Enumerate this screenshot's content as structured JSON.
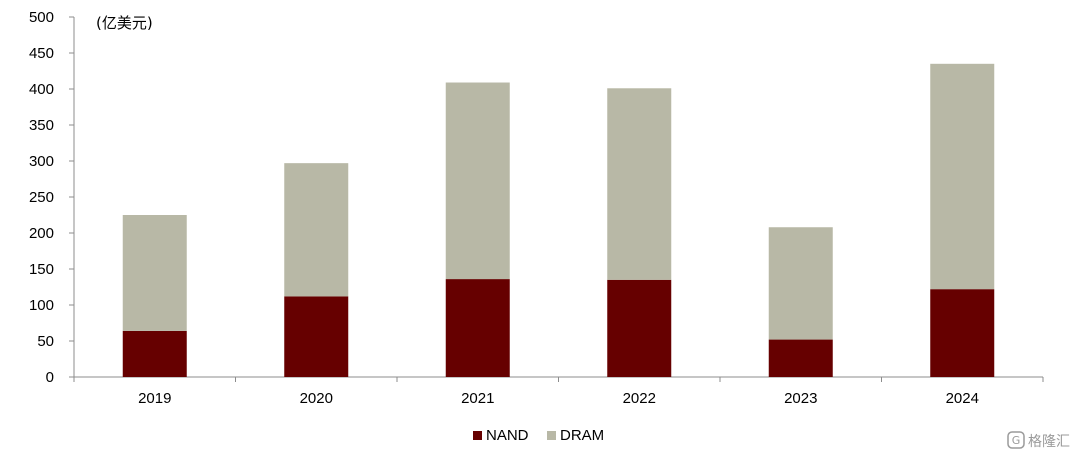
{
  "chart_data": {
    "type": "bar",
    "stacked": true,
    "unit_label": "(亿美元)",
    "categories": [
      "2019",
      "2020",
      "2021",
      "2022",
      "2023",
      "2024"
    ],
    "series": [
      {
        "name": "NAND",
        "color": "#660000",
        "values": [
          64,
          112,
          136,
          135,
          52,
          122
        ]
      },
      {
        "name": "DRAM",
        "color": "#b8b8a6",
        "values": [
          161,
          185,
          273,
          266,
          156,
          313
        ]
      }
    ],
    "ylim": [
      0,
      500
    ],
    "yticks": [
      0,
      50,
      100,
      150,
      200,
      250,
      300,
      350,
      400,
      450,
      500
    ],
    "grid": false,
    "legend_position": "bottom-center"
  },
  "watermark": {
    "text": "格隆汇",
    "icon": "glh-logo-icon"
  }
}
